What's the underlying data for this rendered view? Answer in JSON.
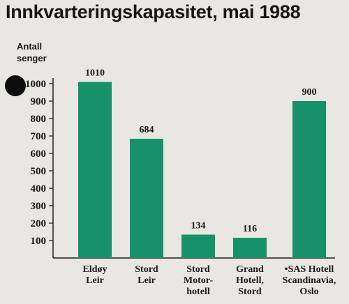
{
  "chart_data": {
    "type": "bar",
    "title": "Innkvarteringskapasitet, mai 1988",
    "ylabel": "Antall\nsenger",
    "xlabel": "",
    "ylim": [
      0,
      1000
    ],
    "yticks": [
      "100",
      "200",
      "300",
      "400",
      "500",
      "600",
      "700",
      "800",
      "900",
      "1000"
    ],
    "categories": [
      [
        "Eldøy",
        "Leir"
      ],
      [
        "Stord",
        "Leir"
      ],
      [
        "Stord",
        "Motor-",
        "hotell"
      ],
      [
        "Grand",
        "Hotell,",
        "Stord"
      ],
      [
        "•SAS Hotell",
        "Scandinavia,",
        "Oslo"
      ]
    ],
    "values": [
      1010,
      684,
      134,
      116,
      900
    ],
    "value_labels": [
      "1010",
      "684",
      "134",
      "116",
      "900"
    ],
    "bar_color": "#16916a",
    "grid": false,
    "legend": "none"
  }
}
